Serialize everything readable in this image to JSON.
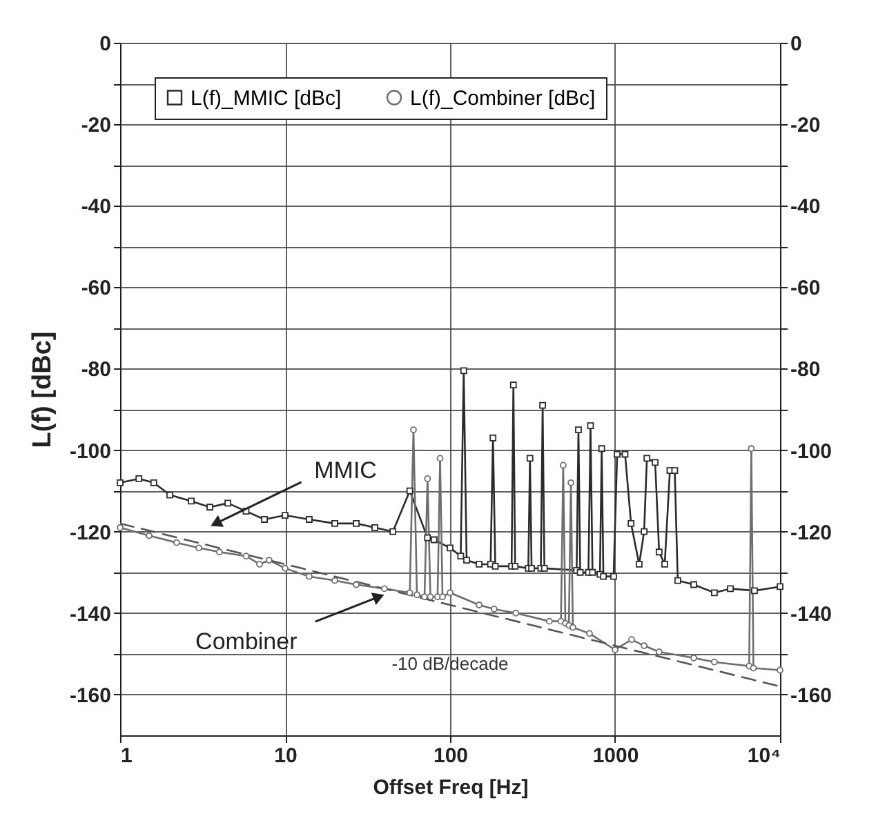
{
  "chart_data": {
    "type": "line",
    "xlabel": "Offset Freq [Hz]",
    "ylabel": "L(f) [dBc]",
    "log": "x",
    "grid": true,
    "legend": "top",
    "xlim": [
      1,
      10000
    ],
    "xticks": [
      1,
      10,
      100,
      1000,
      {
        "value": 10000,
        "label": "10⁴"
      }
    ],
    "ylim": [
      -170,
      0
    ],
    "yticks": [
      0,
      {
        "value": -10,
        "label": null
      },
      -20,
      {
        "value": -30,
        "label": null
      },
      -40,
      {
        "value": -50,
        "label": null
      },
      -60,
      {
        "value": -70,
        "label": null
      },
      -80,
      {
        "value": -90,
        "label": null
      },
      -100,
      {
        "value": -110,
        "label": null
      },
      -120,
      {
        "value": -130,
        "label": null
      },
      -140,
      {
        "value": -150,
        "label": null
      },
      -160
    ],
    "y2lim": [
      -170,
      0
    ],
    "y2ticks": [
      0,
      {
        "value": -10,
        "label": null
      },
      -20,
      {
        "value": -30,
        "label": null
      },
      -40,
      {
        "value": -50,
        "label": null
      },
      -60,
      {
        "value": -70,
        "label": null
      },
      -80,
      {
        "value": -90,
        "label": null
      },
      -100,
      {
        "value": -110,
        "label": null
      },
      -120,
      {
        "value": -130,
        "label": null
      },
      -140,
      {
        "value": -150,
        "label": null
      },
      -160
    ],
    "series": [
      {
        "name": "L(f)_MMIC [dBc]",
        "color": "#2b2b2b",
        "marker": "square",
        "x": [
          1,
          1.3,
          1.6,
          2,
          2.7,
          3.5,
          4.5,
          5.8,
          7.5,
          10,
          14,
          20,
          27,
          35,
          45,
          57,
          73,
          80,
          100,
          116,
          121,
          126,
          150,
          176,
          182,
          188,
          236,
          242,
          248,
          298,
          305,
          312,
          355,
          364,
          373,
          585,
          600,
          615,
          690,
          710,
          730,
          810,
          830,
          850,
          980,
          1030,
          1150,
          1250,
          1400,
          1500,
          1560,
          1750,
          1850,
          2000,
          2150,
          2300,
          2400,
          3000,
          4000,
          5000,
          7000,
          10000
        ],
        "values": [
          -108,
          -107,
          -108,
          -111,
          -112.5,
          -114,
          -113,
          -115,
          -117,
          -116,
          -117,
          -118,
          -118,
          -119,
          -120,
          -110,
          -121.5,
          -122,
          -124,
          -126,
          -80.5,
          -127,
          -128,
          -128,
          -97,
          -128.5,
          -128.5,
          -84,
          -128.5,
          -129,
          -102,
          -129,
          -129,
          -89,
          -129,
          -129.5,
          -95,
          -130,
          -130,
          -94,
          -130,
          -130.5,
          -99.6,
          -131,
          -131,
          -101,
          -101,
          -118,
          -128,
          -120,
          -102,
          -103,
          -125,
          -128,
          -105,
          -105,
          -132,
          -133,
          -135,
          -134,
          -134.5,
          -133.5
        ]
      },
      {
        "name": "L(f)_Combiner [dBc]",
        "color": "#6e6e6e",
        "marker": "circle",
        "x": [
          1,
          1.5,
          2.2,
          3,
          4,
          5.8,
          7,
          8,
          10,
          14,
          20,
          27,
          40,
          57,
          60,
          63,
          70,
          73,
          76,
          84,
          87,
          90,
          100,
          150,
          185,
          250,
          400,
          470,
          485,
          500,
          525,
          540,
          555,
          700,
          1000,
          1260,
          1500,
          1850,
          3000,
          4000,
          6500,
          6700,
          6900,
          10000
        ],
        "values": [
          -119,
          -121,
          -122.7,
          -124,
          -125,
          -126,
          -128,
          -127,
          -129,
          -131,
          -132,
          -133,
          -134,
          -135,
          -95,
          -135.5,
          -136,
          -107,
          -136,
          -136,
          -102,
          -136,
          -135,
          -138,
          -139,
          -140,
          -142,
          -142,
          -103.7,
          -142.5,
          -143,
          -108,
          -143.5,
          -145,
          -149,
          -146.5,
          -148,
          -149.5,
          -151,
          -152,
          -153,
          -99.6,
          -153.5,
          -154
        ]
      },
      {
        "name": "-10 dB/decade",
        "type": "line",
        "color": "#555555",
        "line_style": "dashed",
        "x": [
          1,
          10000
        ],
        "values": [
          -118,
          -158
        ]
      }
    ],
    "annotations": [
      {
        "text": "MMIC",
        "x": 3.8,
        "y": -118
      },
      {
        "text": "Combiner",
        "x": 37,
        "y": -136
      }
    ]
  }
}
